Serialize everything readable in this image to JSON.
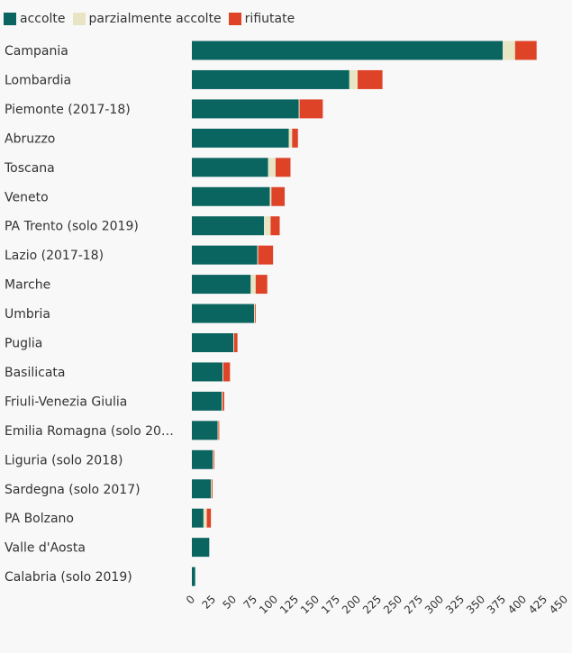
{
  "chart_data": {
    "type": "bar",
    "orientation": "horizontal",
    "stacked": true,
    "legend_position": "top-left",
    "grid": false,
    "xlim": [
      0,
      450
    ],
    "x_ticks": [
      "0",
      "25",
      "50",
      "75",
      "100",
      "125",
      "150",
      "175",
      "200",
      "225",
      "250",
      "275",
      "300",
      "325",
      "350",
      "375",
      "400",
      "425",
      "450"
    ],
    "categories": [
      "Campania",
      "Lombardia",
      "Piemonte (2017-18)",
      "Abruzzo",
      "Toscana",
      "Veneto",
      "PA Trento (solo 2019)",
      "Lazio (2017-18)",
      "Marche",
      "Umbria",
      "Puglia",
      "Basilicata",
      "Friuli-Venezia Giulia",
      "Emilia Romagna (solo 20…",
      "Liguria (solo 2018)",
      "Sardegna (solo 2017)",
      "PA Bolzano",
      "Valle d'Aosta",
      "Calabria (solo 2019)"
    ],
    "series": [
      {
        "name": "accolte",
        "color": "#0a6460",
        "values": [
          375,
          190,
          129,
          117,
          92,
          94,
          87,
          79,
          71,
          75,
          50,
          37,
          36,
          31,
          25,
          23,
          14,
          21,
          4
        ]
      },
      {
        "name": "parzialmente accolte",
        "color": "#e8e5c4",
        "values": [
          15,
          10,
          1,
          4,
          9,
          2,
          8,
          1,
          6,
          1,
          1,
          1,
          1,
          1,
          1,
          1,
          4,
          0,
          0
        ]
      },
      {
        "name": "rifiutate",
        "color": "#de4328",
        "values": [
          26,
          30,
          28,
          7,
          18,
          16,
          11,
          18,
          14,
          1,
          4,
          8,
          2,
          1,
          1,
          1,
          5,
          0,
          0
        ]
      }
    ]
  }
}
